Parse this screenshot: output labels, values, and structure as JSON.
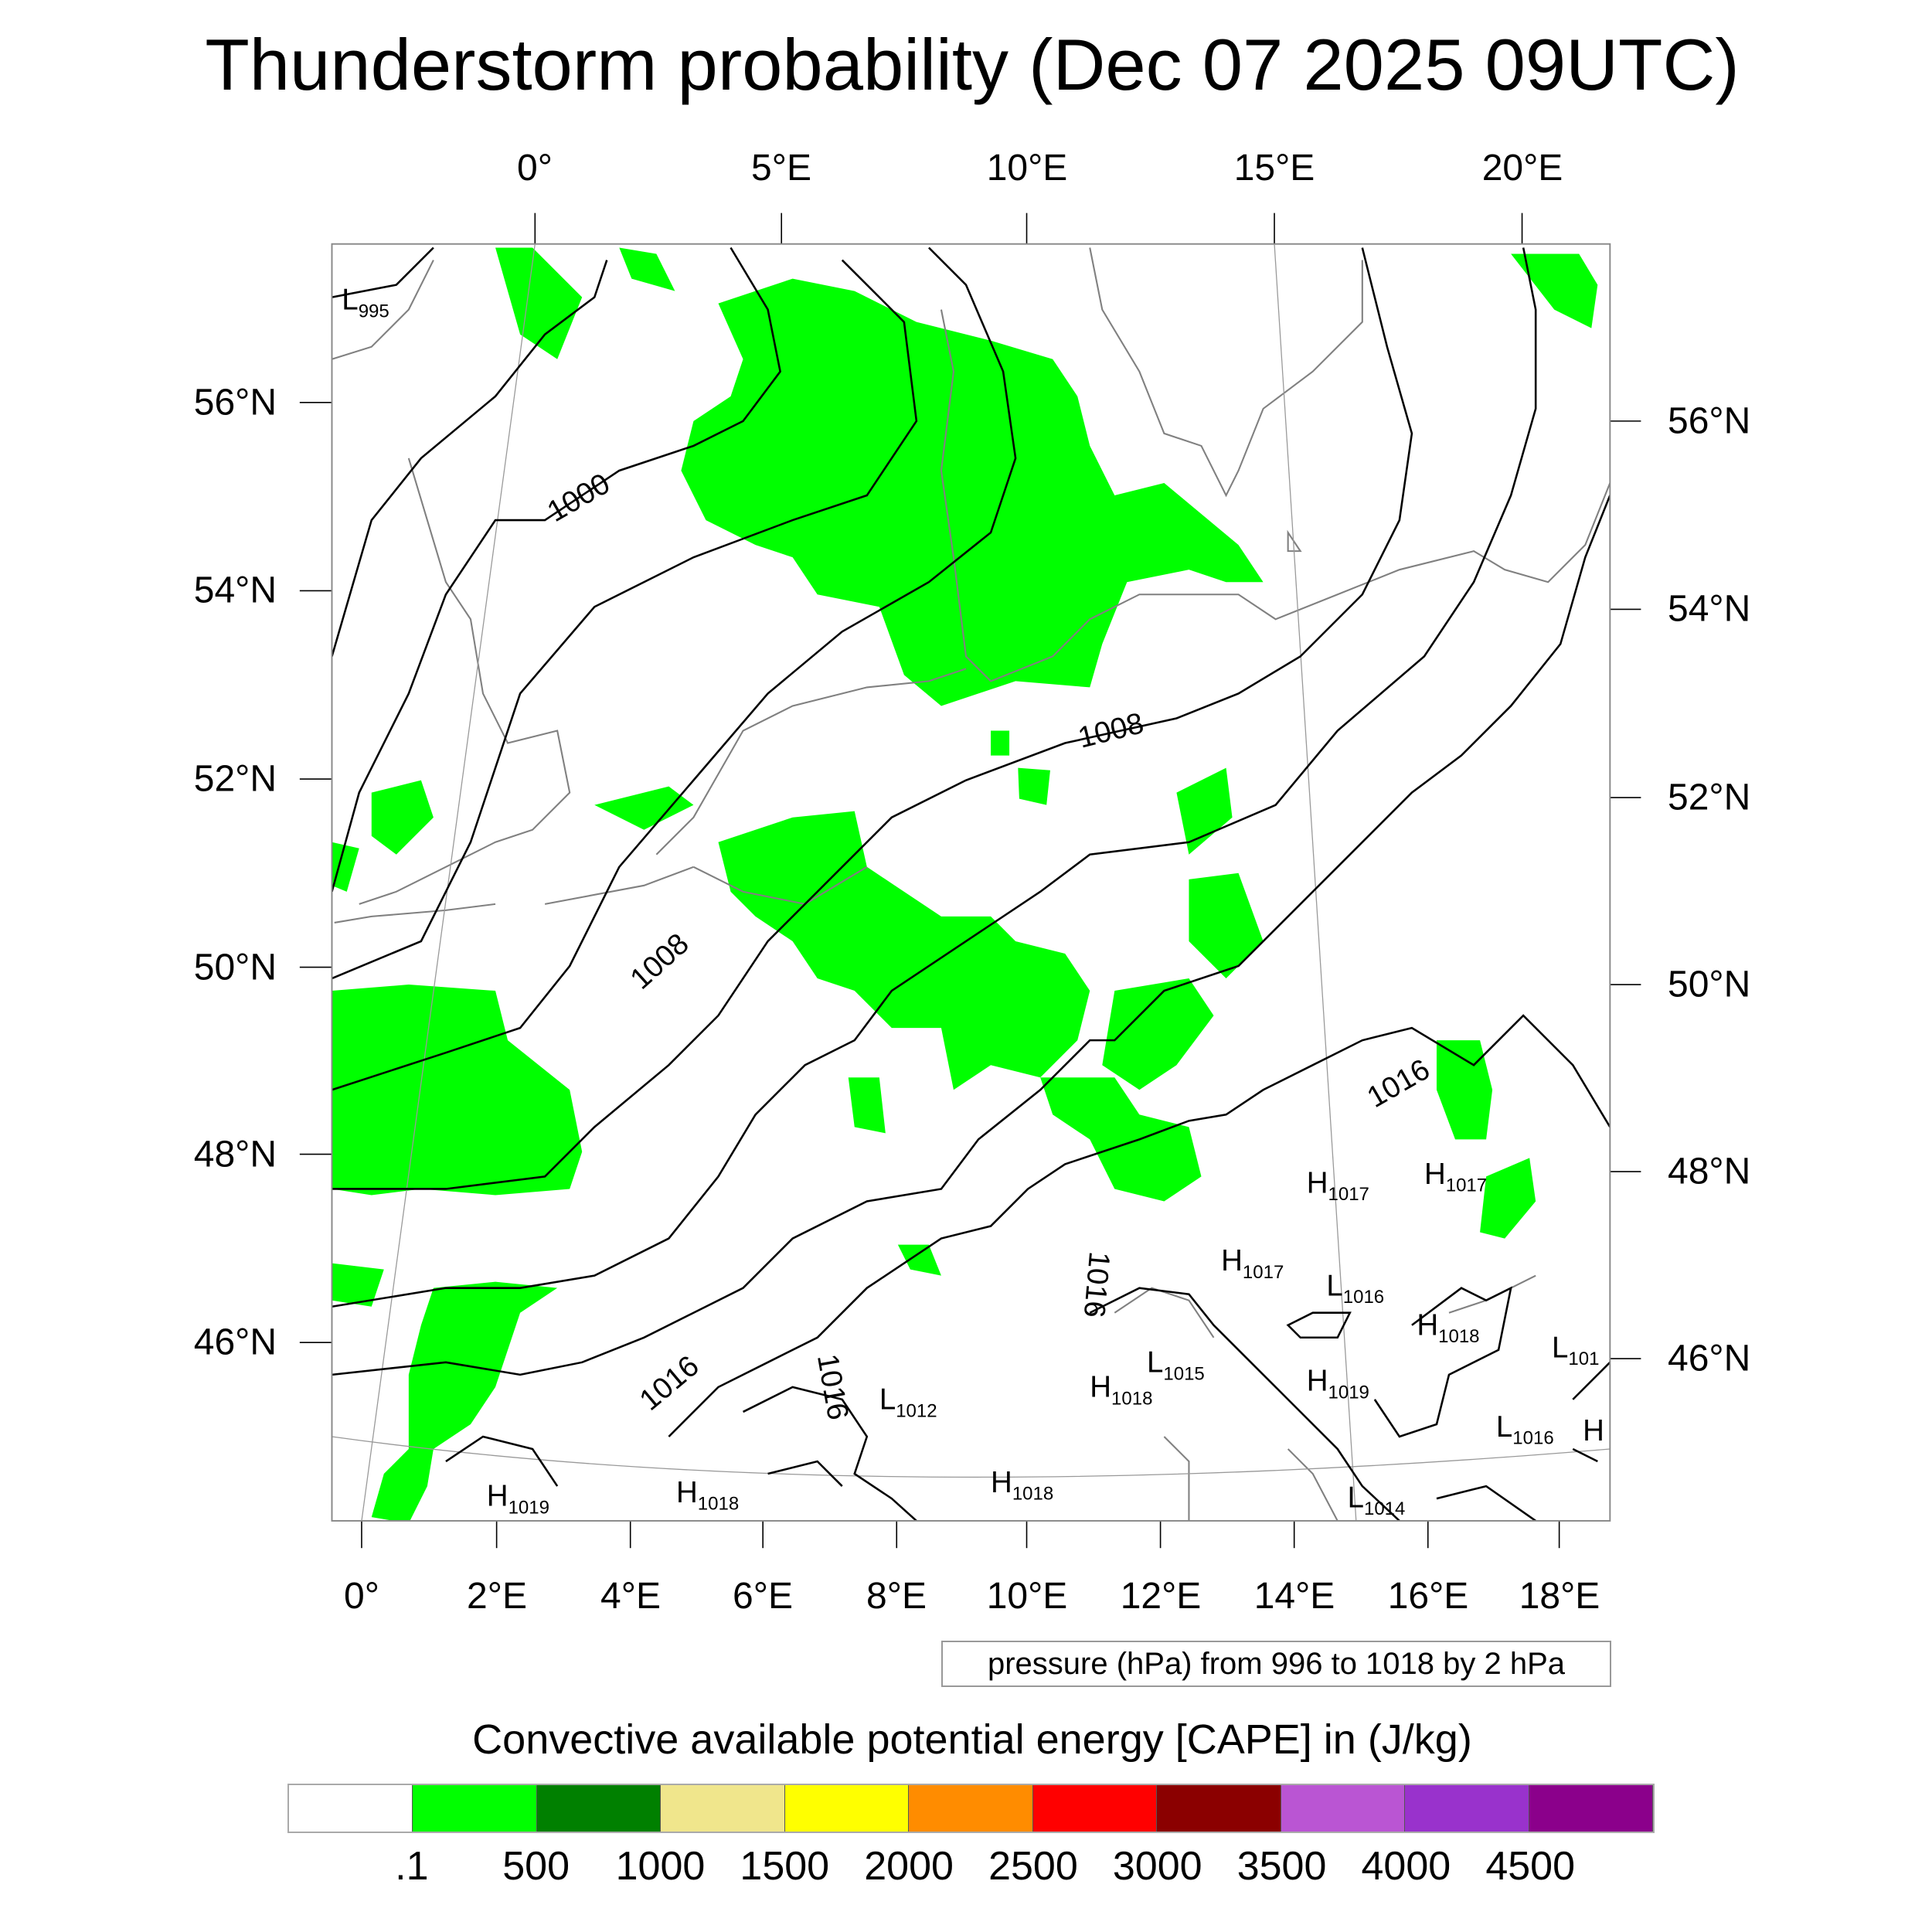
{
  "title": "Thunderstorm probability (Dec 07 2025 09UTC)",
  "top_lon_labels": [
    "0°",
    "5°E",
    "10°E",
    "15°E",
    "20°E"
  ],
  "bottom_lon_labels": [
    "0°",
    "2°E",
    "4°E",
    "6°E",
    "8°E",
    "10°E",
    "12°E",
    "14°E",
    "16°E",
    "18°E"
  ],
  "left_lat_labels": [
    "56°N",
    "54°N",
    "52°N",
    "50°N",
    "48°N",
    "46°N"
  ],
  "right_lat_labels": [
    "56°N",
    "54°N",
    "52°N",
    "50°N",
    "48°N",
    "46°N"
  ],
  "contour_info": "pressure (hPa) from 996 to 1018 by 2 hPa",
  "contour_labels": [
    "1000",
    "1008",
    "1008",
    "1016",
    "1016",
    "1016",
    "1016"
  ],
  "pressure_centers": [
    {
      "type": "L",
      "value": "995"
    },
    {
      "type": "H",
      "value": "1019"
    },
    {
      "type": "H",
      "value": "1018"
    },
    {
      "type": "H",
      "value": "1018"
    },
    {
      "type": "H",
      "value": "1018"
    },
    {
      "type": "L",
      "value": "1012"
    },
    {
      "type": "L",
      "value": "1015"
    },
    {
      "type": "H",
      "value": "1017"
    },
    {
      "type": "H",
      "value": "1017"
    },
    {
      "type": "H",
      "value": "1017"
    },
    {
      "type": "L",
      "value": "1016"
    },
    {
      "type": "H",
      "value": "1018"
    },
    {
      "type": "H",
      "value": "1019"
    },
    {
      "type": "L",
      "value": "101"
    },
    {
      "type": "L",
      "value": "1016"
    },
    {
      "type": "H",
      "value": ""
    },
    {
      "type": "L",
      "value": "1014"
    }
  ],
  "colorbar": {
    "title": "Convective available potential energy [CAPE] in (J/kg)",
    "colors": [
      "#ffffff",
      "#00ff00",
      "#008000",
      "#f0e68c",
      "#ffff00",
      "#ff8c00",
      "#ff0000",
      "#8b0000",
      "#ba55d3",
      "#9932cc",
      "#8b008b"
    ],
    "labels": [
      ".1",
      "500",
      "1000",
      "1500",
      "2000",
      "2500",
      "3000",
      "3500",
      "4000",
      "4500"
    ]
  },
  "colors": {
    "cape_fill": "#00ff00",
    "contour": "#000000",
    "coastline": "#808080"
  }
}
